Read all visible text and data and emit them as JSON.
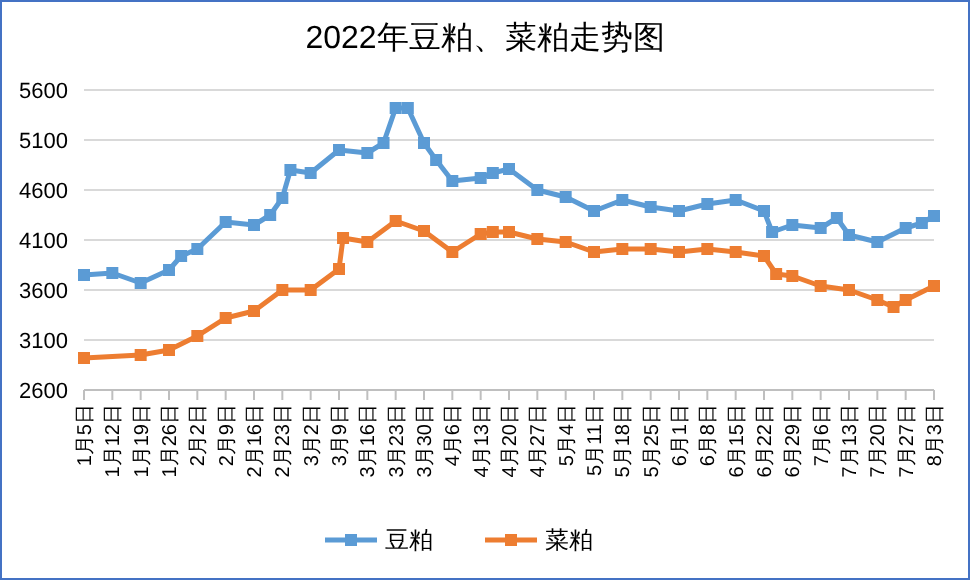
{
  "chart_data": {
    "type": "line",
    "title": "2022年豆粕、菜粕走势图",
    "xlim": [
      "2022-01-05",
      "2022-08-03"
    ],
    "xticks": [
      {
        "value": "2022-01-05",
        "label": "1月5日"
      },
      {
        "value": "2022-01-12",
        "label": "1月12日"
      },
      {
        "value": "2022-01-19",
        "label": "1月19日"
      },
      {
        "value": "2022-01-26",
        "label": "1月26日"
      },
      {
        "value": "2022-02-02",
        "label": "2月2日"
      },
      {
        "value": "2022-02-09",
        "label": "2月9日"
      },
      {
        "value": "2022-02-16",
        "label": "2月16日"
      },
      {
        "value": "2022-02-23",
        "label": "2月23日"
      },
      {
        "value": "2022-03-02",
        "label": "3月2日"
      },
      {
        "value": "2022-03-09",
        "label": "3月9日"
      },
      {
        "value": "2022-03-16",
        "label": "3月16日"
      },
      {
        "value": "2022-03-23",
        "label": "3月23日"
      },
      {
        "value": "2022-03-30",
        "label": "3月30日"
      },
      {
        "value": "2022-04-06",
        "label": "4月6日"
      },
      {
        "value": "2022-04-13",
        "label": "4月13日"
      },
      {
        "value": "2022-04-20",
        "label": "4月20日"
      },
      {
        "value": "2022-04-27",
        "label": "4月27日"
      },
      {
        "value": "2022-05-04",
        "label": "5月4日"
      },
      {
        "value": "2022-05-11",
        "label": "5月11日"
      },
      {
        "value": "2022-05-18",
        "label": "5月18日"
      },
      {
        "value": "2022-05-25",
        "label": "5月25日"
      },
      {
        "value": "2022-06-01",
        "label": "6月1日"
      },
      {
        "value": "2022-06-08",
        "label": "6月8日"
      },
      {
        "value": "2022-06-15",
        "label": "6月15日"
      },
      {
        "value": "2022-06-22",
        "label": "6月22日"
      },
      {
        "value": "2022-06-29",
        "label": "6月29日"
      },
      {
        "value": "2022-07-06",
        "label": "7月6日"
      },
      {
        "value": "2022-07-13",
        "label": "7月13日"
      },
      {
        "value": "2022-07-20",
        "label": "7月20日"
      },
      {
        "value": "2022-07-27",
        "label": "7月27日"
      },
      {
        "value": "2022-08-03",
        "label": "8月3日"
      }
    ],
    "ylim": [
      2600,
      5600
    ],
    "yticks": [
      2600,
      3100,
      3600,
      4100,
      4600,
      5100,
      5600
    ],
    "grid": "y",
    "legend": "bottom",
    "marker": "square",
    "series": [
      {
        "name": "豆粕",
        "color": "#5b9bd5",
        "x": [
          "2022-01-05",
          "2022-01-12",
          "2022-01-19",
          "2022-01-26",
          "2022-01-29",
          "2022-02-02",
          "2022-02-09",
          "2022-02-16",
          "2022-02-20",
          "2022-02-23",
          "2022-02-25",
          "2022-03-02",
          "2022-03-09",
          "2022-03-16",
          "2022-03-20",
          "2022-03-23",
          "2022-03-26",
          "2022-03-30",
          "2022-04-02",
          "2022-04-06",
          "2022-04-13",
          "2022-04-16",
          "2022-04-20",
          "2022-04-27",
          "2022-05-04",
          "2022-05-11",
          "2022-05-18",
          "2022-05-25",
          "2022-06-01",
          "2022-06-08",
          "2022-06-15",
          "2022-06-22",
          "2022-06-24",
          "2022-06-29",
          "2022-07-06",
          "2022-07-10",
          "2022-07-13",
          "2022-07-20",
          "2022-07-27",
          "2022-07-31",
          "2022-08-03"
        ],
        "values": [
          3750,
          3770,
          3670,
          3800,
          3940,
          4010,
          4280,
          4250,
          4350,
          4520,
          4800,
          4770,
          5000,
          4970,
          5070,
          5420,
          5420,
          5070,
          4900,
          4690,
          4720,
          4770,
          4810,
          4600,
          4530,
          4390,
          4500,
          4430,
          4390,
          4460,
          4500,
          4390,
          4180,
          4250,
          4220,
          4320,
          4150,
          4080,
          4220,
          4270,
          4340
        ]
      },
      {
        "name": "菜粕",
        "color": "#ed7d31",
        "x": [
          "2022-01-05",
          "2022-01-19",
          "2022-01-26",
          "2022-02-02",
          "2022-02-09",
          "2022-02-16",
          "2022-02-23",
          "2022-03-02",
          "2022-03-09",
          "2022-03-10",
          "2022-03-16",
          "2022-03-23",
          "2022-03-30",
          "2022-04-06",
          "2022-04-13",
          "2022-04-16",
          "2022-04-20",
          "2022-04-27",
          "2022-05-04",
          "2022-05-11",
          "2022-05-18",
          "2022-05-25",
          "2022-06-01",
          "2022-06-08",
          "2022-06-15",
          "2022-06-22",
          "2022-06-25",
          "2022-06-29",
          "2022-07-06",
          "2022-07-13",
          "2022-07-20",
          "2022-07-24",
          "2022-07-27",
          "2022-08-03"
        ],
        "values": [
          2920,
          2950,
          3000,
          3140,
          3320,
          3390,
          3600,
          3600,
          3810,
          4120,
          4080,
          4290,
          4190,
          3980,
          4160,
          4180,
          4180,
          4110,
          4080,
          3980,
          4010,
          4010,
          3980,
          4010,
          3980,
          3940,
          3760,
          3740,
          3640,
          3600,
          3500,
          3430,
          3500,
          3640
        ]
      }
    ]
  }
}
